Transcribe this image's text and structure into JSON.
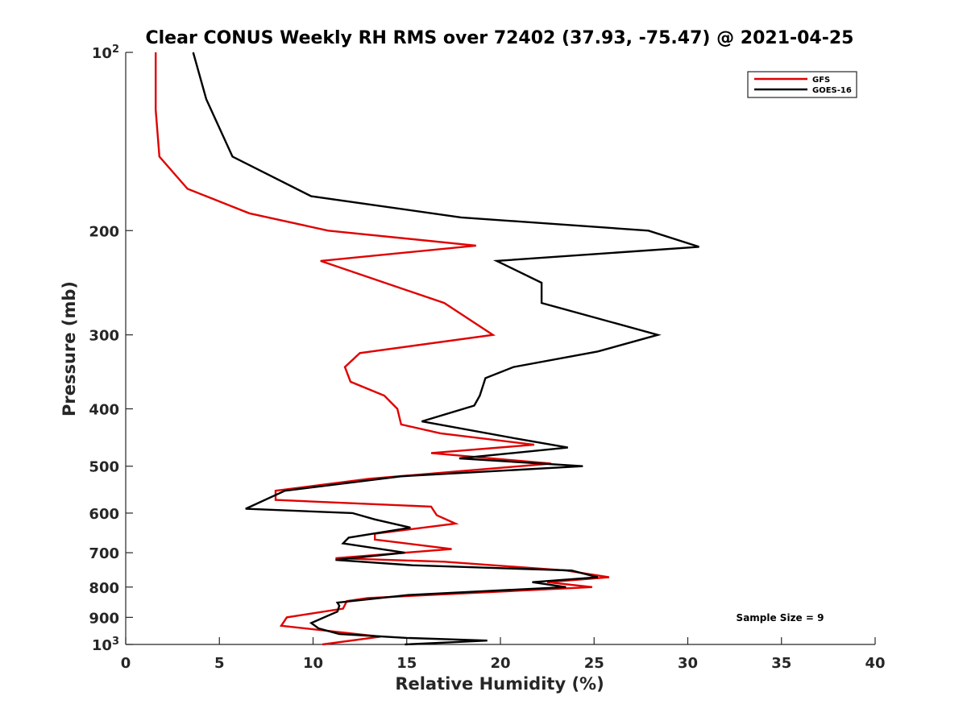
{
  "chart_data": {
    "type": "line",
    "title": "Clear CONUS Weekly RH RMS over 72402 (37.93, -75.47) @ 2021-04-25",
    "xlabel": "Relative Humidity (%)",
    "ylabel": "Pressure (mb)",
    "xlim": [
      0,
      40
    ],
    "ylim": [
      100,
      1000
    ],
    "yscale": "log",
    "y_reversed": true,
    "grid": false,
    "legend_position": "top-right",
    "x_ticks": [
      0,
      5,
      10,
      15,
      20,
      25,
      30,
      35,
      40
    ],
    "y_ticks": [
      {
        "value": 100,
        "base": "10",
        "exp": "2"
      },
      {
        "value": 200,
        "label": "200"
      },
      {
        "value": 300,
        "label": "300"
      },
      {
        "value": 400,
        "label": "400"
      },
      {
        "value": 500,
        "label": "500"
      },
      {
        "value": 600,
        "label": "600"
      },
      {
        "value": 700,
        "label": "700"
      },
      {
        "value": 800,
        "label": "800"
      },
      {
        "value": 900,
        "label": "900"
      },
      {
        "value": 1000,
        "base": "10",
        "exp": "3"
      }
    ],
    "annotation": "Sample Size = 9",
    "series": [
      {
        "name": "GFS",
        "color": "#e00000",
        "points": [
          [
            1.6,
            100
          ],
          [
            1.6,
            125
          ],
          [
            1.8,
            150
          ],
          [
            3.3,
            170
          ],
          [
            6.6,
            187
          ],
          [
            10.8,
            200
          ],
          [
            18.7,
            212
          ],
          [
            10.4,
            225
          ],
          [
            17.0,
            265
          ],
          [
            19.6,
            300
          ],
          [
            12.5,
            322
          ],
          [
            11.7,
            340
          ],
          [
            12.0,
            360
          ],
          [
            13.8,
            380
          ],
          [
            14.5,
            400
          ],
          [
            14.7,
            425
          ],
          [
            16.8,
            440
          ],
          [
            21.8,
            460
          ],
          [
            16.3,
            475
          ],
          [
            22.7,
            495
          ],
          [
            13.0,
            525
          ],
          [
            8.0,
            550
          ],
          [
            8.0,
            570
          ],
          [
            16.3,
            585
          ],
          [
            16.6,
            605
          ],
          [
            17.6,
            625
          ],
          [
            13.3,
            650
          ],
          [
            13.3,
            665
          ],
          [
            17.4,
            690
          ],
          [
            11.2,
            715
          ],
          [
            17.0,
            725
          ],
          [
            23.5,
            750
          ],
          [
            25.8,
            770
          ],
          [
            22.5,
            785
          ],
          [
            24.9,
            800
          ],
          [
            12.9,
            835
          ],
          [
            11.8,
            845
          ],
          [
            11.6,
            870
          ],
          [
            8.6,
            900
          ],
          [
            8.3,
            930
          ],
          [
            13.6,
            970
          ],
          [
            10.5,
            1000
          ]
        ]
      },
      {
        "name": "GOES-16",
        "color": "#000000",
        "points": [
          [
            3.6,
            100
          ],
          [
            4.3,
            120
          ],
          [
            5.7,
            150
          ],
          [
            9.9,
            175
          ],
          [
            17.9,
            190
          ],
          [
            27.9,
            200
          ],
          [
            30.6,
            213
          ],
          [
            19.8,
            225
          ],
          [
            22.2,
            245
          ],
          [
            22.2,
            265
          ],
          [
            28.4,
            300
          ],
          [
            25.2,
            320
          ],
          [
            20.7,
            340
          ],
          [
            19.2,
            355
          ],
          [
            18.9,
            380
          ],
          [
            18.6,
            395
          ],
          [
            15.8,
            420
          ],
          [
            21.0,
            450
          ],
          [
            23.6,
            465
          ],
          [
            17.8,
            485
          ],
          [
            24.4,
            500
          ],
          [
            14.7,
            520
          ],
          [
            8.5,
            550
          ],
          [
            6.4,
            590
          ],
          [
            12.1,
            600
          ],
          [
            13.3,
            615
          ],
          [
            15.2,
            635
          ],
          [
            11.9,
            660
          ],
          [
            11.6,
            675
          ],
          [
            14.9,
            700
          ],
          [
            11.2,
            720
          ],
          [
            15.3,
            735
          ],
          [
            23.8,
            750
          ],
          [
            25.2,
            770
          ],
          [
            21.7,
            785
          ],
          [
            23.5,
            800
          ],
          [
            15.1,
            825
          ],
          [
            11.3,
            850
          ],
          [
            11.4,
            860
          ],
          [
            11.3,
            880
          ],
          [
            9.9,
            920
          ],
          [
            10.3,
            940
          ],
          [
            11.4,
            960
          ],
          [
            15.0,
            975
          ],
          [
            19.3,
            985
          ],
          [
            14.9,
            1000
          ]
        ]
      }
    ]
  }
}
